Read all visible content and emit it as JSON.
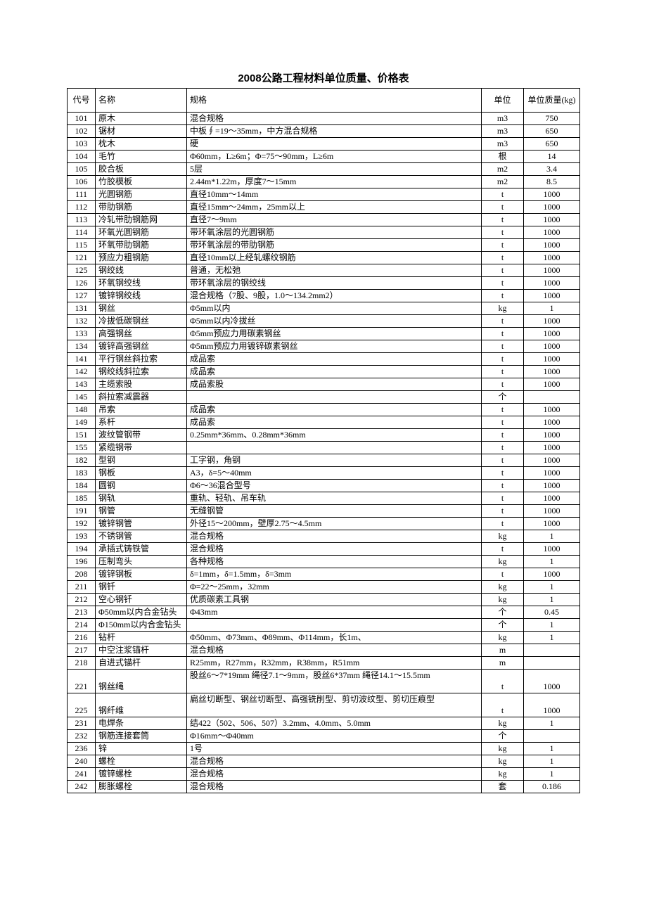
{
  "title": "2008公路工程材料单位质量、价格表",
  "headers": {
    "code": "代号",
    "name": "名称",
    "spec": "规格",
    "unit": "单位",
    "mass": "单位质量(kg)"
  },
  "rows": [
    {
      "code": "101",
      "name": "原木",
      "spec": "混合规格",
      "unit": "m3",
      "mass": "750"
    },
    {
      "code": "102",
      "name": "锯材",
      "spec": "中板∮=19～35mm，中方混合规格",
      "unit": "m3",
      "mass": "650"
    },
    {
      "code": "103",
      "name": "枕木",
      "spec": "硬",
      "unit": "m3",
      "mass": "650"
    },
    {
      "code": "104",
      "name": "毛竹",
      "spec": "Φ60mm，L≥6m；Φ=75～90mm，L≥6m",
      "unit": "根",
      "mass": "14"
    },
    {
      "code": "105",
      "name": "胶合板",
      "spec": "5层",
      "unit": "m2",
      "mass": "3.4"
    },
    {
      "code": "106",
      "name": "竹胶模板",
      "spec": "2.44m*1.22m，厚度7～15mm",
      "unit": "m2",
      "mass": "8.5"
    },
    {
      "code": "111",
      "name": "光圆钢筋",
      "spec": "直径10mm～14mm",
      "unit": "t",
      "mass": "1000"
    },
    {
      "code": "112",
      "name": "带肋钢筋",
      "spec": "直径15mm～24mm，25mm以上",
      "unit": "t",
      "mass": "1000"
    },
    {
      "code": "113",
      "name": "冷轧带肋钢筋网",
      "spec": "直径7～9mm",
      "unit": "t",
      "mass": "1000"
    },
    {
      "code": "114",
      "name": "环氧光圆钢筋",
      "spec": "带环氧涂层的光圆钢筋",
      "unit": "t",
      "mass": "1000"
    },
    {
      "code": "115",
      "name": "环氧带肋钢筋",
      "spec": "带环氧涂层的带肋钢筋",
      "unit": "t",
      "mass": "1000"
    },
    {
      "code": "121",
      "name": "预应力粗钢筋",
      "spec": "直径10mm以上经轧螺纹钢筋",
      "unit": "t",
      "mass": "1000"
    },
    {
      "code": "125",
      "name": "钢绞线",
      "spec": "普通，无松弛",
      "unit": "t",
      "mass": "1000"
    },
    {
      "code": "126",
      "name": "环氧钢绞线",
      "spec": "带环氧涂层的钢绞线",
      "unit": "t",
      "mass": "1000"
    },
    {
      "code": "127",
      "name": "镀锌钢绞线",
      "spec": "混合规格（7股、9股，1.0～134.2mm2）",
      "unit": "t",
      "mass": "1000"
    },
    {
      "code": "131",
      "name": "钢丝",
      "spec": "Φ5mm以内",
      "unit": "kg",
      "mass": "1"
    },
    {
      "code": "132",
      "name": "冷拔低碳钢丝",
      "spec": "Φ5mm以内冷拔丝",
      "unit": "t",
      "mass": "1000"
    },
    {
      "code": "133",
      "name": "高强钢丝",
      "spec": "Φ5mm预应力用碳素钢丝",
      "unit": "t",
      "mass": "1000"
    },
    {
      "code": "134",
      "name": "镀锌高强钢丝",
      "spec": "Φ5mm预应力用镀锌碳素钢丝",
      "unit": "t",
      "mass": "1000"
    },
    {
      "code": "141",
      "name": "平行钢丝斜拉索",
      "spec": "成品索",
      "unit": "t",
      "mass": "1000"
    },
    {
      "code": "142",
      "name": "钢绞线斜拉索",
      "spec": "成品索",
      "unit": "t",
      "mass": "1000"
    },
    {
      "code": "143",
      "name": "主缆索股",
      "spec": "成品索股",
      "unit": "t",
      "mass": "1000"
    },
    {
      "code": "145",
      "name": "斜拉索减震器",
      "spec": "",
      "unit": "个",
      "mass": ""
    },
    {
      "code": "148",
      "name": "吊索",
      "spec": "成品索",
      "unit": "t",
      "mass": "1000"
    },
    {
      "code": "149",
      "name": "系杆",
      "spec": "成品索",
      "unit": "t",
      "mass": "1000"
    },
    {
      "code": "151",
      "name": "波纹管钢带",
      "spec": "0.25mm*36mm、0.28mm*36mm",
      "unit": "t",
      "mass": "1000"
    },
    {
      "code": "155",
      "name": "紧缆钢带",
      "spec": "",
      "unit": "t",
      "mass": "1000"
    },
    {
      "code": "182",
      "name": "型钢",
      "spec": "工字钢，角钢",
      "unit": "t",
      "mass": "1000"
    },
    {
      "code": "183",
      "name": "钢板",
      "spec": "A3，δ=5～40mm",
      "unit": "t",
      "mass": "1000"
    },
    {
      "code": "184",
      "name": "圆钢",
      "spec": "Φ6～36混合型号",
      "unit": "t",
      "mass": "1000"
    },
    {
      "code": "185",
      "name": "钢轨",
      "spec": "重轨、轻轨、吊车轨",
      "unit": "t",
      "mass": "1000"
    },
    {
      "code": "191",
      "name": "钢管",
      "spec": "无缝钢管",
      "unit": "t",
      "mass": "1000"
    },
    {
      "code": "192",
      "name": "镀锌钢管",
      "spec": "外径15～200mm，壁厚2.75～4.5mm",
      "unit": "t",
      "mass": "1000"
    },
    {
      "code": "193",
      "name": "不锈钢管",
      "spec": "混合规格",
      "unit": "kg",
      "mass": "1"
    },
    {
      "code": "194",
      "name": "承插式铸铁管",
      "spec": "混合规格",
      "unit": "t",
      "mass": "1000"
    },
    {
      "code": "196",
      "name": "压制弯头",
      "spec": "各种规格",
      "unit": "kg",
      "mass": "1"
    },
    {
      "code": "208",
      "name": "镀锌钢板",
      "spec": "δ=1mm，δ=1.5mm，δ=3mm",
      "unit": "t",
      "mass": "1000"
    },
    {
      "code": "211",
      "name": "钢钎",
      "spec": "Φ=22～25mm，32mm",
      "unit": "kg",
      "mass": "1"
    },
    {
      "code": "212",
      "name": "空心钢钎",
      "spec": "优质碳素工具钢",
      "unit": "kg",
      "mass": "1"
    },
    {
      "code": "213",
      "name": "Φ50mm以内合金钻头",
      "spec": "Φ43mm",
      "unit": "个",
      "mass": "0.45"
    },
    {
      "code": "214",
      "name": "Φ150mm以内合金钻头",
      "spec": "",
      "unit": "个",
      "mass": "1"
    },
    {
      "code": "216",
      "name": "钻杆",
      "spec": "Φ50mm、Φ73mm、Φ89mm、Φ114mm，长1m、",
      "unit": "kg",
      "mass": "1"
    },
    {
      "code": "217",
      "name": "中空注浆锚杆",
      "spec": "混合规格",
      "unit": "m",
      "mass": ""
    },
    {
      "code": "218",
      "name": "自进式锚杆",
      "spec": "R25mm，R27mm，R32mm，R38mm，R51mm",
      "unit": "m",
      "mass": ""
    },
    {
      "code": "221",
      "name": "钢丝绳",
      "spec": "股丝6～7*19mm 绳径7.1～9mm，股丝6*37mm 绳径14.1～15.5mm",
      "unit": "t",
      "mass": "1000",
      "tall": true
    },
    {
      "code": "225",
      "name": "钢纤维",
      "spec": "扁丝切断型、钢丝切断型、高强铣削型、剪切波纹型、剪切压痕型",
      "unit": "t",
      "mass": "1000",
      "tall": true
    },
    {
      "code": "231",
      "name": "电焊条",
      "spec": "结422（502、506、507）3.2mm、4.0mm、5.0mm",
      "unit": "kg",
      "mass": "1"
    },
    {
      "code": "232",
      "name": "钢筋连接套筒",
      "spec": "Φ16mm～Φ40mm",
      "unit": "个",
      "mass": ""
    },
    {
      "code": "236",
      "name": "锌",
      "spec": "1号",
      "unit": "kg",
      "mass": "1"
    },
    {
      "code": "240",
      "name": "螺栓",
      "spec": "混合规格",
      "unit": "kg",
      "mass": "1"
    },
    {
      "code": "241",
      "name": "镀锌螺栓",
      "spec": "混合规格",
      "unit": "kg",
      "mass": "1"
    },
    {
      "code": "242",
      "name": "膨胀螺栓",
      "spec": "混合规格",
      "unit": "套",
      "mass": "0.186"
    }
  ],
  "style": {
    "background_color": "#ffffff",
    "border_color": "#000000",
    "font_family_body": "SimSun",
    "font_family_title": "SimHei",
    "font_size_title": 15,
    "font_size_body": 12
  }
}
